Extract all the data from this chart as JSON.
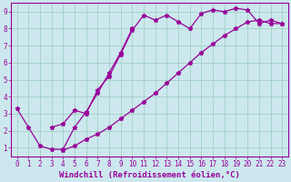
{
  "xlabel": "Windchill (Refroidissement éolien,°C)",
  "bg_color": "#cce8ee",
  "line_color": "#990099",
  "xlim": [
    -0.5,
    23.5
  ],
  "ylim": [
    0.5,
    9.5
  ],
  "xticks": [
    0,
    1,
    2,
    3,
    4,
    5,
    6,
    7,
    8,
    9,
    10,
    11,
    12,
    13,
    14,
    15,
    16,
    17,
    18,
    19,
    20,
    21,
    22,
    23
  ],
  "yticks": [
    1,
    2,
    3,
    4,
    5,
    6,
    7,
    8,
    9
  ],
  "series": [
    {
      "x": [
        3,
        4,
        5,
        6,
        7,
        8,
        9,
        10,
        11,
        12,
        13,
        14,
        15,
        16,
        17,
        18,
        19,
        20,
        21,
        22,
        23
      ],
      "y": [
        2.2,
        2.4,
        3.2,
        3.0,
        4.4,
        5.2,
        6.5,
        7.9,
        8.8,
        8.5,
        8.8,
        8.4,
        8.0,
        8.9,
        9.1,
        9.0,
        9.2,
        9.1,
        8.3,
        8.5,
        8.3
      ]
    },
    {
      "x": [
        0,
        1,
        2,
        3,
        4,
        5,
        6,
        7,
        8,
        9,
        10
      ],
      "y": [
        3.3,
        2.2,
        1.1,
        0.9,
        0.9,
        2.2,
        3.1,
        4.2,
        5.4,
        6.6,
        8.0
      ]
    },
    {
      "x": [
        4,
        5,
        6,
        7,
        8,
        9,
        10,
        11,
        12,
        13,
        14,
        15,
        16,
        17,
        18,
        19,
        20,
        21,
        22,
        23
      ],
      "y": [
        0.85,
        1.1,
        1.5,
        1.8,
        2.2,
        2.7,
        3.2,
        3.7,
        4.2,
        4.8,
        5.4,
        6.0,
        6.6,
        7.1,
        7.6,
        8.0,
        8.4,
        8.5,
        8.3,
        8.3
      ]
    }
  ],
  "grid_color": "#99ccbb",
  "marker": "*",
  "markersize": 3.5,
  "linewidth": 0.9,
  "font_family": "monospace",
  "xlabel_fontsize": 6.5,
  "tick_fontsize": 5.5
}
